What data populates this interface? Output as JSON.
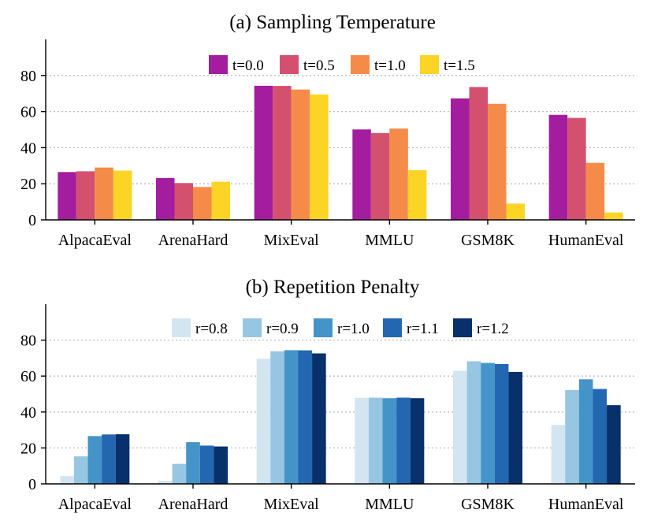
{
  "chart_data": [
    {
      "type": "bar",
      "title": "(a) Sampling Temperature",
      "xlabel": "",
      "ylabel": "",
      "ylim": [
        0,
        100
      ],
      "yticks": [
        0,
        20,
        40,
        60,
        80
      ],
      "grid": true,
      "legend_position": "top-center",
      "categories": [
        "AlpacaEval",
        "ArenaHard",
        "MixEval",
        "MMLU",
        "GSM8K",
        "HumanEval"
      ],
      "series": [
        {
          "name": "t=0.0",
          "color": "#a31d9e",
          "values": [
            26.5,
            23.2,
            74.3,
            50.1,
            67.3,
            58.2
          ]
        },
        {
          "name": "t=0.5",
          "color": "#d4506f",
          "values": [
            26.9,
            20.4,
            74.2,
            48.1,
            73.6,
            56.5
          ]
        },
        {
          "name": "t=1.0",
          "color": "#f58b48",
          "values": [
            29.0,
            18.2,
            72.2,
            50.6,
            64.3,
            31.6
          ]
        },
        {
          "name": "t=1.5",
          "color": "#fcd425",
          "values": [
            27.3,
            21.1,
            69.5,
            27.5,
            9.0,
            4.1
          ]
        }
      ]
    },
    {
      "type": "bar",
      "title": "(b) Repetition Penalty",
      "xlabel": "",
      "ylabel": "",
      "ylim": [
        0,
        100
      ],
      "yticks": [
        0,
        20,
        40,
        60,
        80
      ],
      "grid": true,
      "legend_position": "top-center",
      "categories": [
        "AlpacaEval",
        "ArenaHard",
        "MixEval",
        "MMLU",
        "GSM8K",
        "HumanEval"
      ],
      "series": [
        {
          "name": "r=0.8",
          "color": "#d2e5f1",
          "values": [
            4.3,
            1.7,
            69.6,
            47.9,
            62.9,
            32.8
          ]
        },
        {
          "name": "r=0.9",
          "color": "#96c6e1",
          "values": [
            15.3,
            11.1,
            73.8,
            48.0,
            68.2,
            52.2
          ]
        },
        {
          "name": "r=1.0",
          "color": "#4494c9",
          "values": [
            26.6,
            23.2,
            74.4,
            47.7,
            67.3,
            58.2
          ]
        },
        {
          "name": "r=1.1",
          "color": "#2267b0",
          "values": [
            27.5,
            21.3,
            74.3,
            48.0,
            66.7,
            52.8
          ]
        },
        {
          "name": "r=1.2",
          "color": "#08306b",
          "values": [
            27.6,
            20.8,
            72.6,
            47.7,
            62.3,
            43.8
          ]
        }
      ]
    }
  ]
}
